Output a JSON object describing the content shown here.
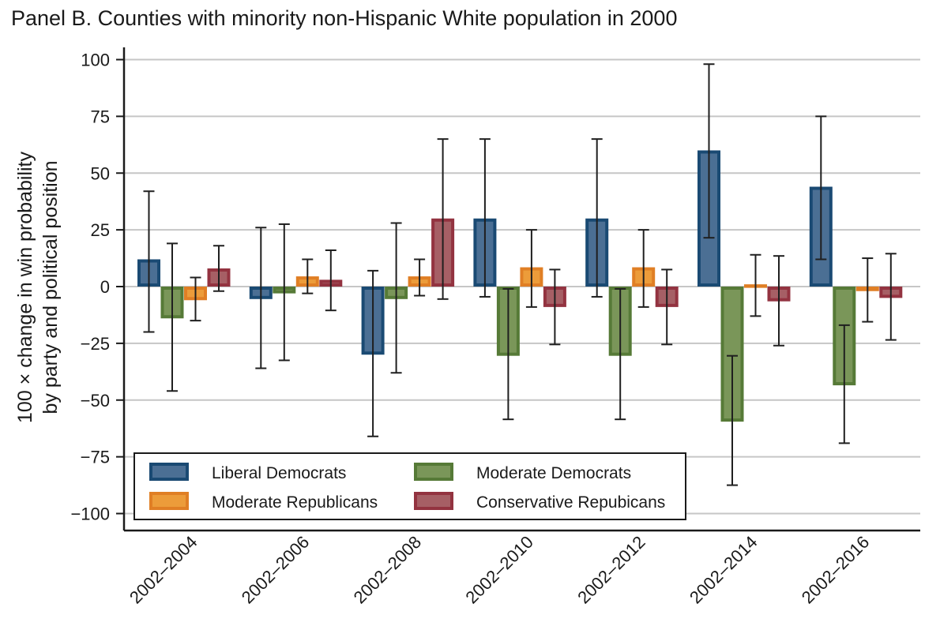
{
  "chart_data": {
    "type": "bar",
    "title": "Panel B. Counties with minority non-Hispanic White population in 2000",
    "xlabel": "",
    "ylabel_lines": [
      "100 × change in win probability",
      "by party and political position"
    ],
    "ylim": [
      -105,
      105
    ],
    "yticks": [
      100,
      75,
      50,
      25,
      0,
      -25,
      -50,
      -75,
      -100
    ],
    "ytick_labels": [
      "100",
      "75",
      "50",
      "25",
      "0",
      "−25",
      "−50",
      "−75",
      "−100"
    ],
    "grid": true,
    "legend_position": "bottom-left-inside",
    "categories": [
      "2002–2004",
      "2002–2006",
      "2002–2008",
      "2002–2010",
      "2002–2012",
      "2002–2014",
      "2002–2016"
    ],
    "series": [
      {
        "name": "Liberal Democrats",
        "stroke": "#1a4a73",
        "fill": "#4b6f94",
        "values": [
          12,
          -5.5,
          -30,
          30,
          30,
          60,
          44
        ],
        "ci_low": [
          -20,
          -36,
          -66,
          -4.5,
          -4.5,
          21.5,
          12
        ],
        "ci_high": [
          42,
          26,
          7,
          65,
          65,
          98,
          75
        ]
      },
      {
        "name": "Moderate Democrats",
        "stroke": "#567a37",
        "fill": "#7a9659",
        "values": [
          -14,
          -3,
          -5.5,
          -30.5,
          -30.5,
          -59.5,
          -43.5
        ],
        "ci_low": [
          -46,
          -32.5,
          -38,
          -58.5,
          -58.5,
          -87.5,
          -69
        ],
        "ci_high": [
          19,
          27.5,
          28,
          -1,
          -1,
          -30.5,
          -17
        ]
      },
      {
        "name": "Moderate Republicans",
        "stroke": "#e07f25",
        "fill": "#ec9c3a",
        "values": [
          -6,
          4.5,
          4.5,
          8.5,
          8.5,
          1,
          -2
        ],
        "ci_low": [
          -15,
          -3,
          -4,
          -9,
          -9,
          -13,
          -15.5
        ],
        "ci_high": [
          4,
          12,
          12,
          25,
          25,
          14,
          12.5
        ]
      },
      {
        "name": "Conservative Repubicans",
        "stroke": "#933340",
        "fill": "#a65f65",
        "values": [
          8,
          3,
          30,
          -9,
          -9,
          -6.5,
          -5
        ],
        "ci_low": [
          -2,
          -10.5,
          -5.5,
          -25.5,
          -25.5,
          -26,
          -23.5
        ],
        "ci_high": [
          18,
          16,
          65,
          7.5,
          7.5,
          13.5,
          14.5
        ]
      }
    ]
  }
}
